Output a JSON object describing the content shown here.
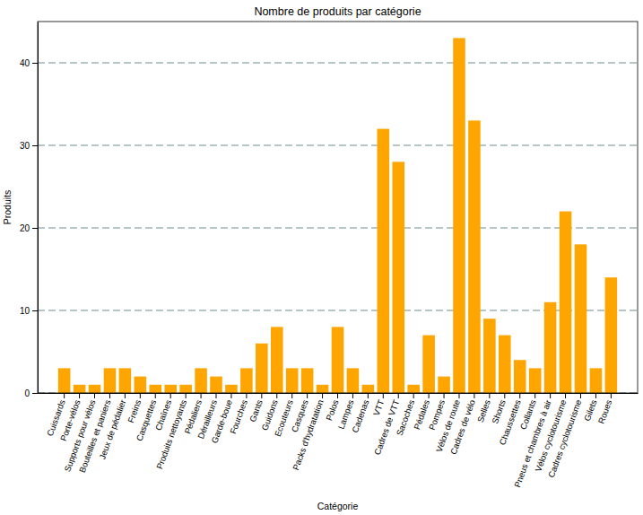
{
  "chart_data": {
    "type": "bar",
    "title": "Nombre de produits par catégorie",
    "x_label": "Catégorie",
    "y_label": "Produits",
    "categories": [
      "Cuissards",
      "Porte-vélos",
      "Supports pour vélos",
      "Bouteilles et paniers",
      "Jeux de pédalier",
      "Freins",
      "Casquettes",
      "Chaînes",
      "Produits nettoyants",
      "Pédaliers",
      "Dérailleurs",
      "Garde-boue",
      "Fourches",
      "Gants",
      "Guidons",
      "Ecouteurs",
      "Casques",
      "Packs d'hydratation",
      "Polos",
      "Lampes",
      "Cadenas",
      "VTT",
      "Cadres de VTT",
      "Sacoches",
      "Pédales",
      "Pompes",
      "Vélos de route",
      "Cadres de vélo",
      "Selles",
      "Shorts",
      "Chaussettes",
      "Collants",
      "Pneus et chambres à air",
      "Vélos cyclotourisme",
      "Cadres cyclotourisme",
      "Gilets",
      "Roues"
    ],
    "values": [
      3,
      1,
      1,
      3,
      3,
      2,
      1,
      1,
      1,
      3,
      2,
      1,
      3,
      6,
      8,
      3,
      3,
      1,
      8,
      3,
      1,
      32,
      28,
      1,
      7,
      2,
      43,
      33,
      9,
      7,
      4,
      3,
      11,
      22,
      18,
      3,
      14
    ],
    "color": "#ffa500",
    "ylim": [
      0,
      45
    ],
    "yticks": [
      0,
      10,
      20,
      30,
      40
    ],
    "grid": true
  }
}
